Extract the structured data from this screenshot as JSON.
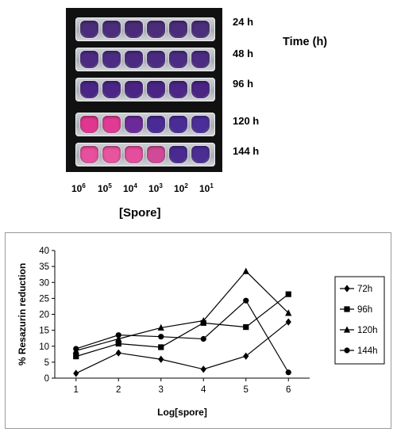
{
  "plate": {
    "time_title": "Time (h)",
    "spore_title": "[Spore]",
    "rows": [
      {
        "label": "24 h",
        "colors": [
          "#4a2c7a",
          "#4b2d7c",
          "#4a2b79",
          "#4b2d7a",
          "#4a2c7b",
          "#4b2e7c"
        ]
      },
      {
        "label": "48 h",
        "colors": [
          "#4b2a82",
          "#4c2b84",
          "#4a2a80",
          "#4b2b82",
          "#4c2c83",
          "#4b2c82"
        ]
      },
      {
        "label": "96 h",
        "colors": [
          "#4a2585",
          "#4b2686",
          "#4a2484",
          "#4a2585",
          "#4b2686",
          "#4a2584"
        ]
      },
      {
        "label": "120 h",
        "colors": [
          "#e0368f",
          "#e13a92",
          "#6a2a9a",
          "#4a2a94",
          "#4a2c96",
          "#4c2e98"
        ]
      },
      {
        "label": "144 h",
        "colors": [
          "#e84f9c",
          "#e9549f",
          "#e54e9c",
          "#d04a98",
          "#4a2a90",
          "#4c2d92"
        ]
      }
    ],
    "concentrations": [
      {
        "base": "10",
        "exp": "6"
      },
      {
        "base": "10",
        "exp": "5"
      },
      {
        "base": "10",
        "exp": "4"
      },
      {
        "base": "10",
        "exp": "3"
      },
      {
        "base": "10",
        "exp": "2"
      },
      {
        "base": "10",
        "exp": "1"
      }
    ]
  },
  "chart_data": {
    "type": "line",
    "xlabel": "Log[spore]",
    "ylabel": "% Resazurin reduction",
    "x": [
      1,
      2,
      3,
      4,
      5,
      6
    ],
    "xlim": [
      0.5,
      6.5
    ],
    "ylim": [
      0,
      40
    ],
    "xticks": [
      1,
      2,
      3,
      4,
      5,
      6
    ],
    "yticks": [
      0,
      5,
      10,
      15,
      20,
      25,
      30,
      35,
      40
    ],
    "grid": false,
    "legend_position": "right",
    "series": [
      {
        "name": "72h",
        "marker": "diamond",
        "values": [
          1.5,
          7.9,
          5.9,
          2.8,
          6.9,
          17.6
        ]
      },
      {
        "name": "96h",
        "marker": "square",
        "values": [
          6.8,
          10.8,
          9.7,
          17.3,
          16.0,
          26.3
        ]
      },
      {
        "name": "120h",
        "marker": "triangle",
        "values": [
          8.6,
          12.3,
          15.8,
          18.0,
          33.5,
          20.4
        ]
      },
      {
        "name": "144h",
        "marker": "circle",
        "values": [
          9.2,
          13.5,
          13.0,
          12.3,
          24.3,
          1.8
        ]
      }
    ]
  }
}
